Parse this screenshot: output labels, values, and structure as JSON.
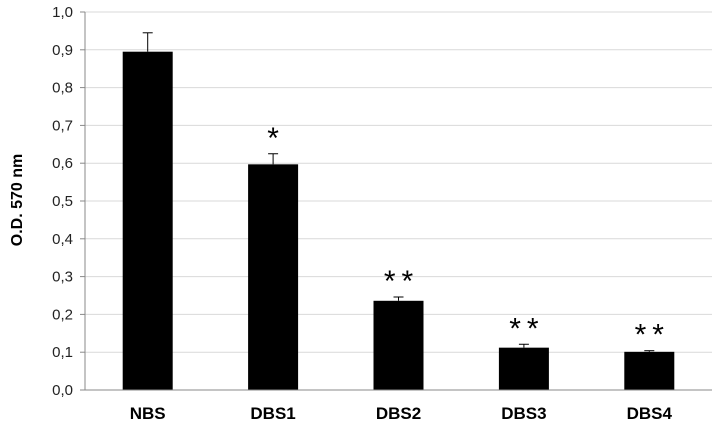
{
  "chart_data": {
    "type": "bar",
    "title": "",
    "xlabel": "",
    "ylabel": "O.D. 570 nm",
    "ylim": [
      0,
      1.0
    ],
    "yticks": [
      "0,0",
      "0,1",
      "0,2",
      "0,3",
      "0,4",
      "0,5",
      "0,6",
      "0,7",
      "0,8",
      "0,9",
      "1,0"
    ],
    "grid": true,
    "categories": [
      "NBS",
      "DBS1",
      "DBS2",
      "DBS3",
      "DBS4"
    ],
    "values": [
      0.895,
      0.597,
      0.236,
      0.112,
      0.101
    ],
    "error_plus": [
      0.05,
      0.028,
      0.01,
      0.009,
      0.003
    ],
    "significance": [
      "",
      "*",
      "**",
      "**",
      "**"
    ],
    "bar_color": "#000000",
    "grid_color": "#d9d9d9"
  }
}
